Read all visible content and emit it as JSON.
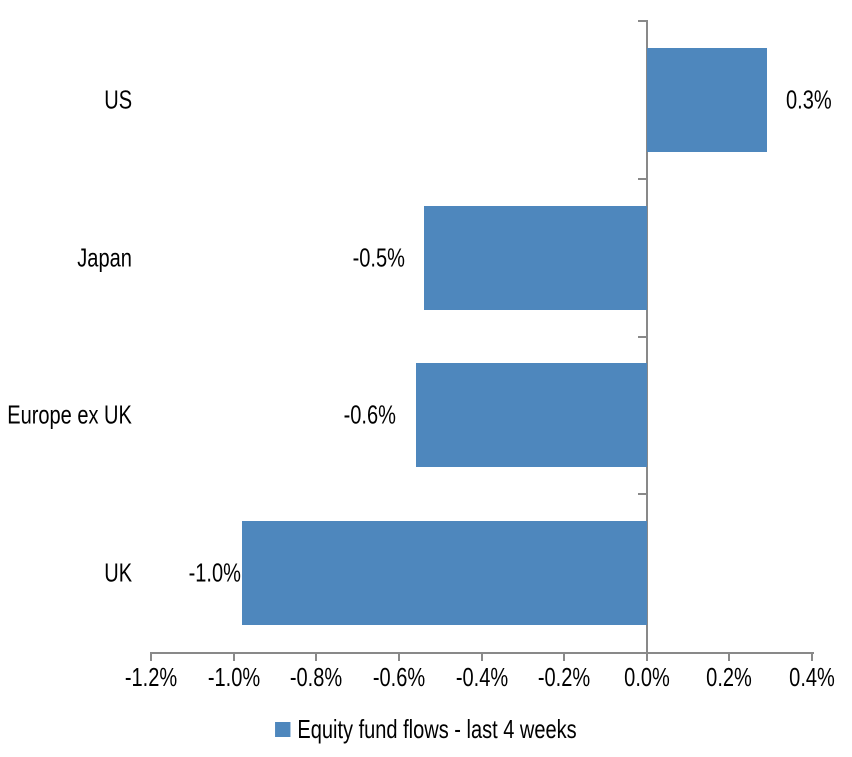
{
  "chart_data": {
    "type": "bar",
    "orientation": "horizontal",
    "title": "",
    "categories": [
      "US",
      "Japan",
      "Europe ex UK",
      "UK"
    ],
    "values": [
      0.3,
      -0.5,
      -0.6,
      -1.0
    ],
    "values_precise_pct": [
      0.29,
      -0.54,
      -0.56,
      -0.98
    ],
    "data_labels": [
      "0.3%",
      "-0.5%",
      "-0.6%",
      "-1.0%"
    ],
    "x_axis": {
      "min": -1.2,
      "max": 0.4,
      "tick_step": 0.2,
      "tick_labels": [
        "-1.2%",
        "-1.0%",
        "-0.8%",
        "-0.6%",
        "-0.4%",
        "-0.2%",
        "0.0%",
        "0.2%",
        "0.4%"
      ]
    },
    "grid": false,
    "legend": {
      "label": "Equity fund flows - last 4 weeks",
      "position": "bottom",
      "swatch": "square"
    },
    "colors": {
      "bar": "#4E87BD",
      "axis": "#898989",
      "text": "#000000",
      "background": "#FFFFFF"
    }
  }
}
